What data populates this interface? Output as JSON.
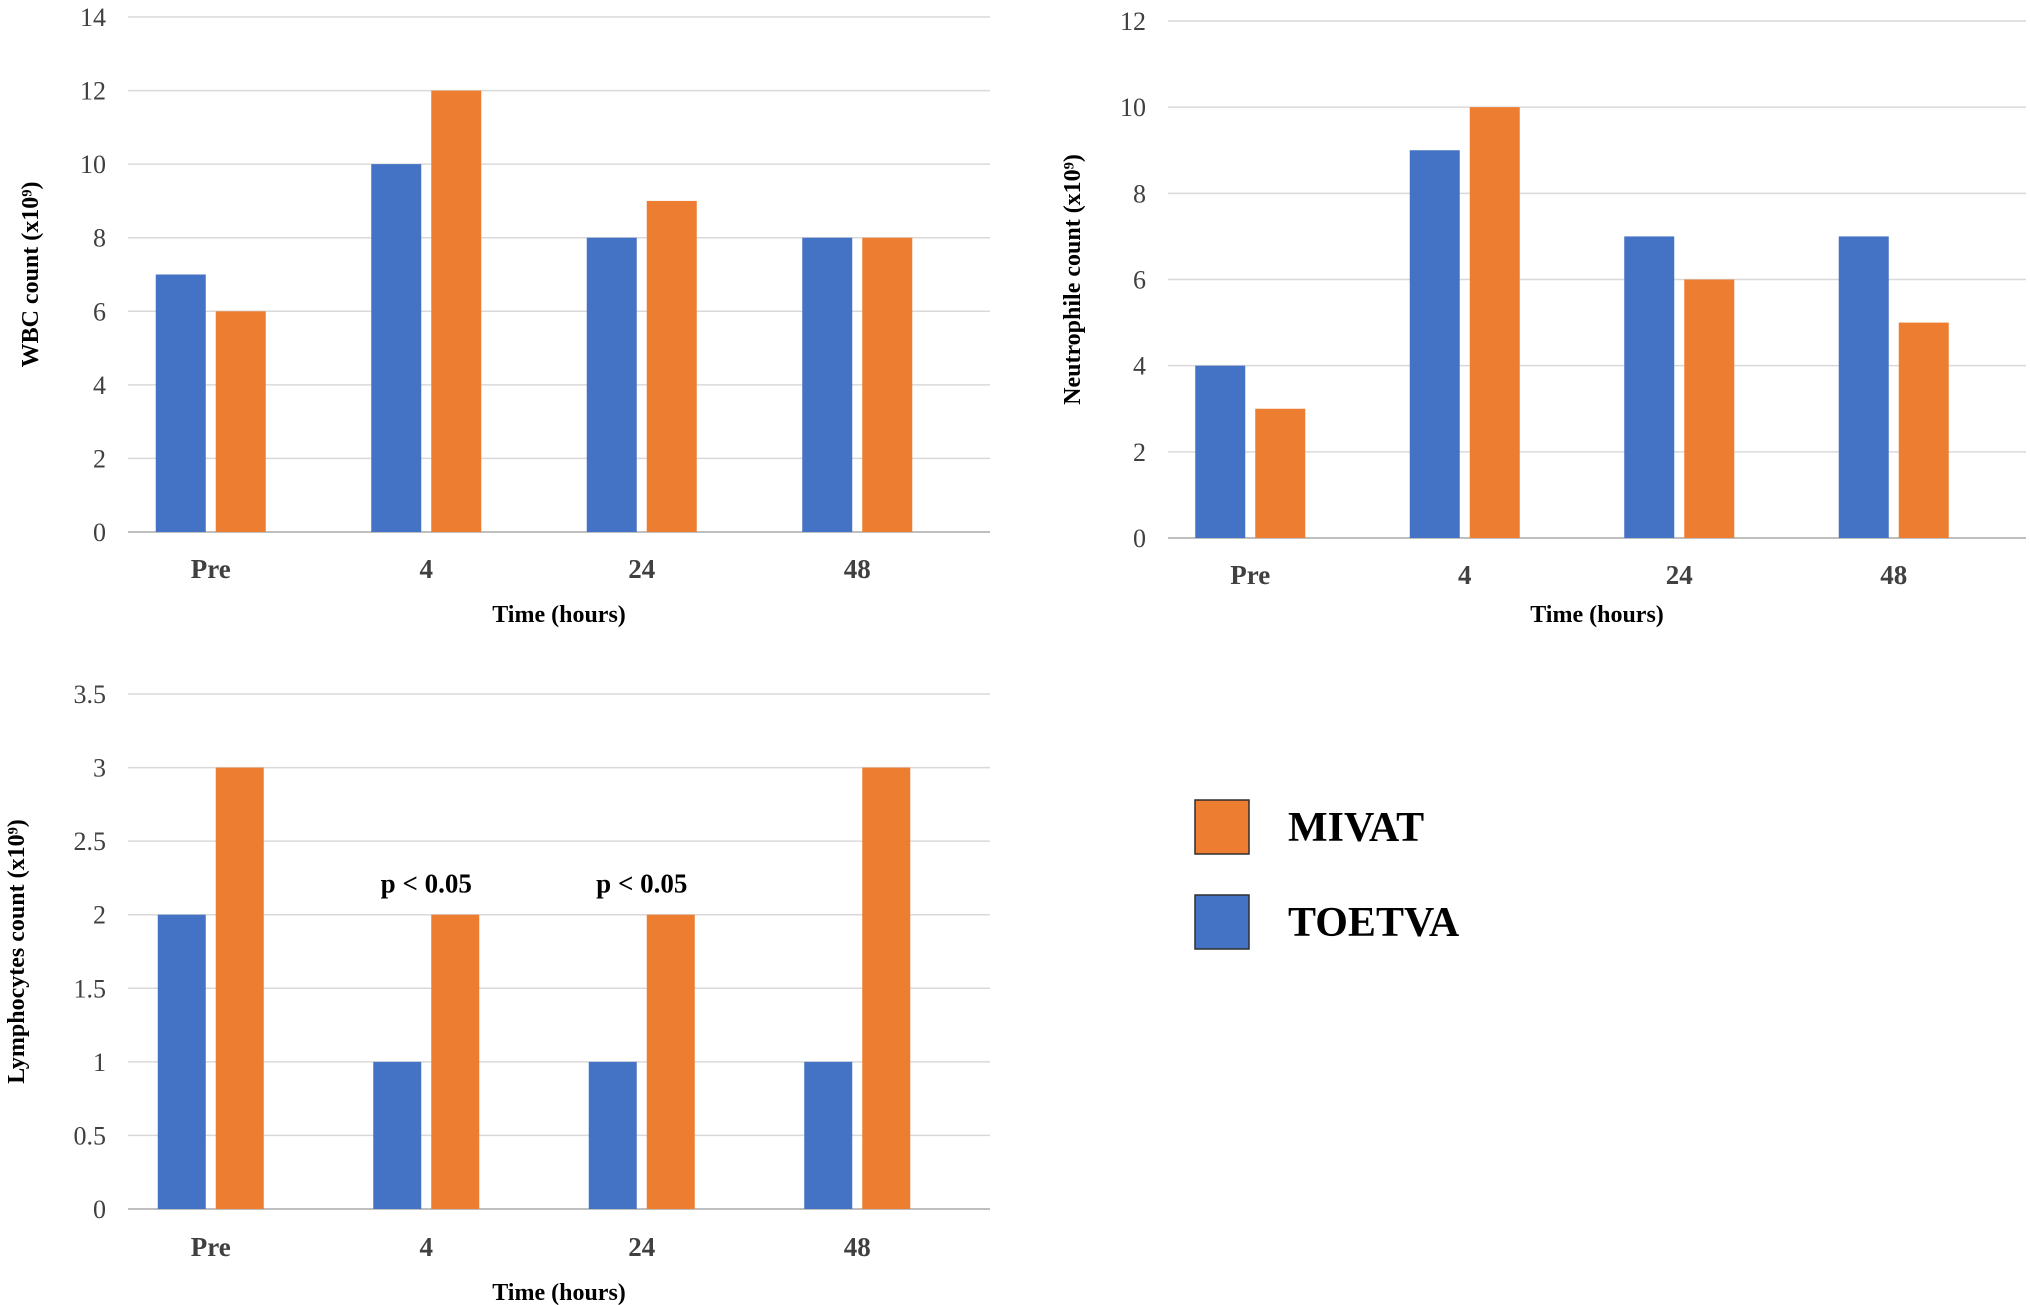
{
  "colors": {
    "mivat": "#ED7D31",
    "toetva": "#4472C4"
  },
  "legend": {
    "items": [
      {
        "label": "MIVAT",
        "color": "#ED7D31"
      },
      {
        "label": "TOETVA",
        "color": "#4472C4"
      }
    ]
  },
  "chart_data": [
    {
      "type": "bar",
      "title": "",
      "xlabel": "Time (hours)",
      "ylabel": "WBC count (x10⁹)",
      "categories": [
        "Pre",
        "4",
        "24",
        "48"
      ],
      "ylim": [
        0,
        14
      ],
      "yticks": [
        "0",
        "2",
        "4",
        "6",
        "8",
        "10",
        "12",
        "14"
      ],
      "series": [
        {
          "name": "TOETVA",
          "values": [
            7,
            10,
            8,
            8
          ]
        },
        {
          "name": "MIVAT",
          "values": [
            6,
            12,
            9,
            8
          ]
        }
      ],
      "annotations": []
    },
    {
      "type": "bar",
      "title": "",
      "xlabel": "Time (hours)",
      "ylabel": "Neutrophile count (x10⁹)",
      "categories": [
        "Pre",
        "4",
        "24",
        "48"
      ],
      "ylim": [
        0,
        12
      ],
      "yticks": [
        "0",
        "2",
        "4",
        "6",
        "8",
        "10",
        "12"
      ],
      "series": [
        {
          "name": "TOETVA",
          "values": [
            4,
            9,
            7,
            7
          ]
        },
        {
          "name": "MIVAT",
          "values": [
            3,
            10,
            6,
            5
          ]
        }
      ],
      "annotations": []
    },
    {
      "type": "bar",
      "title": "",
      "xlabel": "Time (hours)",
      "ylabel": "Lymphocytes count (x10⁹)",
      "categories": [
        "Pre",
        "4",
        "24",
        "48"
      ],
      "ylim": [
        0,
        3.5
      ],
      "yticks": [
        "0",
        "0.5",
        "1",
        "1.5",
        "2",
        "2.5",
        "3",
        "3.5"
      ],
      "series": [
        {
          "name": "TOETVA",
          "values": [
            2,
            1,
            1,
            1
          ]
        },
        {
          "name": "MIVAT",
          "values": [
            3,
            2,
            2,
            3
          ]
        }
      ],
      "annotations": [
        {
          "category": "4",
          "text": "p < 0.05"
        },
        {
          "category": "24",
          "text": "p < 0.05"
        }
      ]
    }
  ]
}
